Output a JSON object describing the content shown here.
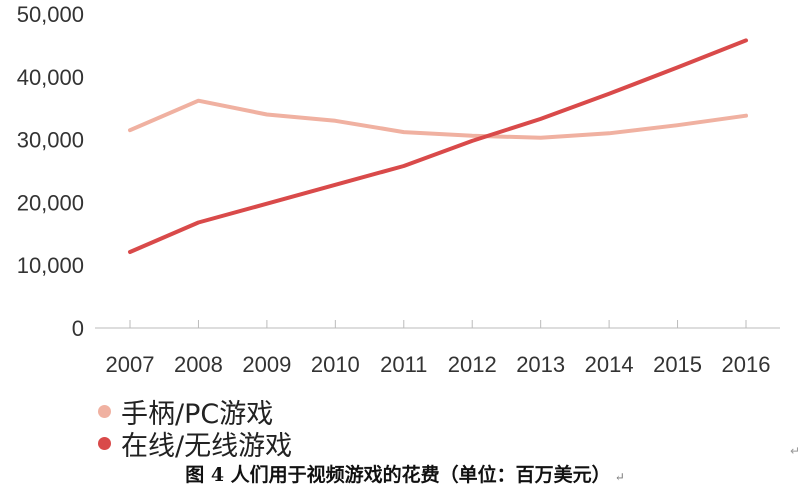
{
  "chart_data": {
    "type": "line",
    "title": "",
    "xlabel": "",
    "ylabel": "",
    "categories": [
      "2007",
      "2008",
      "2009",
      "2010",
      "2011",
      "2012",
      "2013",
      "2014",
      "2015",
      "2016"
    ],
    "ylim": [
      0,
      50000
    ],
    "yticks": [
      "0",
      "10,000",
      "20,000",
      "30,000",
      "40,000",
      "50,000"
    ],
    "grid": false,
    "legend_position": "bottom-left",
    "series": [
      {
        "name": "手柄/PC游戏",
        "color": "#f0b1a1",
        "values": [
          31500,
          36200,
          34000,
          33000,
          31200,
          30600,
          30300,
          31000,
          32300,
          33800
        ]
      },
      {
        "name": "在线/无线游戏",
        "color": "#d94a4a",
        "values": [
          12100,
          16800,
          19800,
          22800,
          25800,
          29800,
          33300,
          37300,
          41500,
          45800
        ]
      }
    ]
  },
  "caption": {
    "text": "图 4  人们用于视频游戏的花费（单位：百万美元）",
    "mark": "↵"
  },
  "corner_mark": "↵"
}
